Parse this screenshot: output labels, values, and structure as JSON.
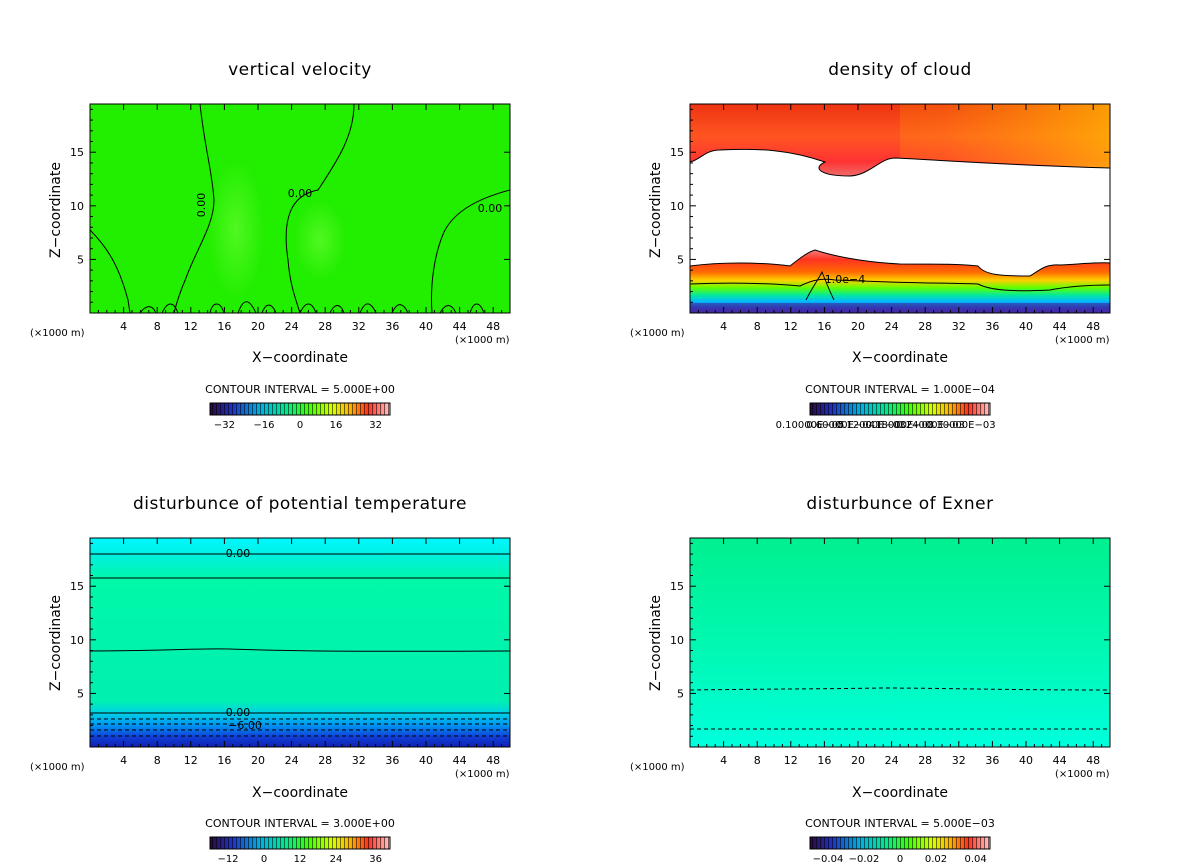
{
  "chart_data": [
    {
      "type": "heatmap",
      "title": "vertical velocity",
      "xlabel": "X−coordinate",
      "ylabel": "Z−coordinate",
      "x_unit": "(×1000 m)",
      "xlim": [
        0,
        50
      ],
      "ylim": [
        0,
        19.5
      ],
      "xticks": [
        4,
        8,
        12,
        16,
        20,
        24,
        28,
        32,
        36,
        40,
        44,
        48
      ],
      "yticks": [
        5,
        10,
        15
      ],
      "contour_interval": "CONTOUR INTERVAL = 5.000E+00",
      "colorbar_ticks": [
        "−32",
        "−16",
        "0",
        "16",
        "32"
      ],
      "contour_labels": [
        "0.00",
        "0.00",
        "0.00"
      ],
      "field": "near-zero everywhere (uniform green)"
    },
    {
      "type": "heatmap",
      "title": "density of cloud",
      "xlabel": "X−coordinate",
      "ylabel": "Z−coordinate",
      "x_unit": "(×1000 m)",
      "xlim": [
        0,
        50
      ],
      "ylim": [
        0,
        19.5
      ],
      "xticks": [
        4,
        8,
        12,
        16,
        20,
        24,
        28,
        32,
        36,
        40,
        44,
        48
      ],
      "yticks": [
        5,
        10,
        15
      ],
      "contour_interval": "CONTOUR INTERVAL = 1.000E−04",
      "colorbar_ticks": [
        "0.10000E−05",
        "0.60000E−04",
        "0.12000E−03",
        "0.18000E−03",
        "0.24000E−03",
        "0.30000E−03"
      ],
      "contour_labels": [
        "1.0e−4"
      ],
      "field": "cloud layers at z 14–19 km and z 0.5–5 km, clear between"
    },
    {
      "type": "heatmap",
      "title": "disturbunce of potential temperature",
      "xlabel": "X−coordinate",
      "ylabel": "Z−coordinate",
      "x_unit": "(×1000 m)",
      "xlim": [
        0,
        50
      ],
      "ylim": [
        0,
        19.5
      ],
      "xticks": [
        4,
        8,
        12,
        16,
        20,
        24,
        28,
        32,
        36,
        40,
        44,
        48
      ],
      "yticks": [
        5,
        10,
        15
      ],
      "contour_interval": "CONTOUR INTERVAL = 3.000E+00",
      "colorbar_ticks": [
        "−12",
        "0",
        "12",
        "24",
        "36"
      ],
      "contour_labels": [
        "0.00",
        "0.00",
        "−6.00"
      ],
      "field": "horizontally stratified, negative near surface"
    },
    {
      "type": "heatmap",
      "title": "disturbunce of Exner",
      "xlabel": "X−coordinate",
      "ylabel": "Z−coordinate",
      "x_unit": "(×1000 m)",
      "xlim": [
        0,
        50
      ],
      "ylim": [
        0,
        19.5
      ],
      "xticks": [
        4,
        8,
        12,
        16,
        20,
        24,
        28,
        32,
        36,
        40,
        44,
        48
      ],
      "yticks": [
        5,
        10,
        15
      ],
      "contour_interval": "CONTOUR INTERVAL = 5.000E−03",
      "colorbar_ticks": [
        "−0.04",
        "−0.02",
        "0",
        "0.02",
        "0.04"
      ],
      "contour_labels": [],
      "field": "smooth vertical gradient, green to cyan"
    }
  ],
  "colors": {
    "green_field": "#22ee00",
    "cyan_field": "#00ffcc",
    "teal_field": "#00f0a0",
    "cloud_red": "#ee2222",
    "cloud_orange": "#ffa000",
    "deep_blue": "#1020c0"
  }
}
